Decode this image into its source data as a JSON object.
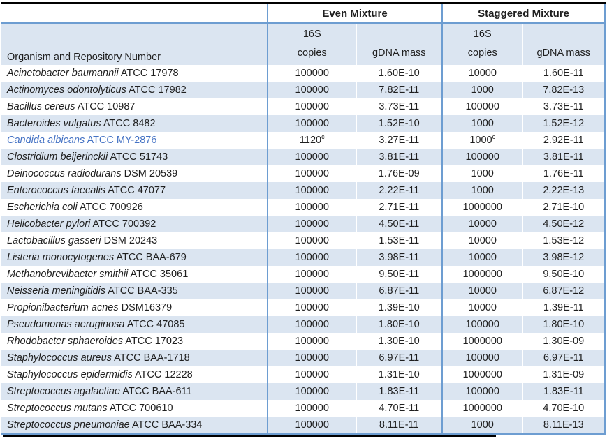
{
  "colors": {
    "stripe_background": "#dbe5f1",
    "blue_border": "#6d9dd1",
    "black_rule": "#000000",
    "highlight_text": "#4472c4",
    "body_text": "#1f1f1f"
  },
  "table": {
    "group_headers": [
      {
        "label": "Even Mixture"
      },
      {
        "label": "Staggered Mixture"
      }
    ],
    "organism_header": "Organism and Repository Number",
    "subheaders": {
      "copies_top": "16S",
      "copies_bottom": "copies",
      "mass": "gDNA mass"
    },
    "rows": [
      {
        "organism_italic": "Acinetobacter baumannii",
        "organism_plain": "ATCC 17978",
        "even_copies": "100000",
        "even_mass": "1.60E-10",
        "stag_copies": "10000",
        "stag_mass": "1.60E-11"
      },
      {
        "organism_italic": "Actinomyces odontolyticus",
        "organism_plain": "ATCC 17982",
        "even_copies": "100000",
        "even_mass": "7.82E-11",
        "stag_copies": "1000",
        "stag_mass": "7.82E-13"
      },
      {
        "organism_italic": "Bacillus cereus",
        "organism_plain": "ATCC 10987",
        "even_copies": "100000",
        "even_mass": "3.73E-11",
        "stag_copies": "100000",
        "stag_mass": "3.73E-11"
      },
      {
        "organism_italic": "Bacteroides vulgatus",
        "organism_plain": "ATCC 8482",
        "even_copies": "100000",
        "even_mass": "1.52E-10",
        "stag_copies": "1000",
        "stag_mass": "1.52E-12"
      },
      {
        "organism_italic": "Candida albicans",
        "organism_plain": "ATCC MY-2876",
        "even_copies": "1120",
        "even_copies_sup": "c",
        "even_mass": "3.27E-11",
        "stag_copies": "1000",
        "stag_copies_sup": "c",
        "stag_mass": "2.92E-11",
        "highlighted": true
      },
      {
        "organism_italic": "Clostridium beijerinckii",
        "organism_plain": "ATCC 51743",
        "even_copies": "100000",
        "even_mass": "3.81E-11",
        "stag_copies": "100000",
        "stag_mass": "3.81E-11"
      },
      {
        "organism_italic": "Deinococcus radiodurans",
        "organism_plain": "DSM 20539",
        "even_copies": "100000",
        "even_mass": "1.76E-09",
        "stag_copies": "1000",
        "stag_mass": "1.76E-11"
      },
      {
        "organism_italic": "Enterococcus faecalis",
        "organism_plain": "ATCC 47077",
        "even_copies": "100000",
        "even_mass": "2.22E-11",
        "stag_copies": "1000",
        "stag_mass": "2.22E-13"
      },
      {
        "organism_italic": "Escherichia coli",
        "organism_plain": "ATCC 700926",
        "even_copies": "100000",
        "even_mass": "2.71E-11",
        "stag_copies": "1000000",
        "stag_mass": "2.71E-10"
      },
      {
        "organism_italic": "Helicobacter pylori",
        "organism_plain": "ATCC 700392",
        "even_copies": "100000",
        "even_mass": "4.50E-11",
        "stag_copies": "10000",
        "stag_mass": "4.50E-12"
      },
      {
        "organism_italic": "Lactobacillus gasseri",
        "organism_plain": "DSM 20243",
        "even_copies": "100000",
        "even_mass": "1.53E-11",
        "stag_copies": "10000",
        "stag_mass": "1.53E-12"
      },
      {
        "organism_italic": "Listeria monocytogenes",
        "organism_plain": "ATCC BAA-679",
        "even_copies": "100000",
        "even_mass": "3.98E-11",
        "stag_copies": "10000",
        "stag_mass": "3.98E-12"
      },
      {
        "organism_italic": "Methanobrevibacter smithii",
        "organism_plain": "ATCC 35061",
        "even_copies": "100000",
        "even_mass": "9.50E-11",
        "stag_copies": "1000000",
        "stag_mass": "9.50E-10"
      },
      {
        "organism_italic": "Neisseria meningitidis",
        "organism_plain": "ATCC BAA-335",
        "even_copies": "100000",
        "even_mass": "6.87E-11",
        "stag_copies": "10000",
        "stag_mass": "6.87E-12"
      },
      {
        "organism_italic": "Propionibacterium acnes",
        "organism_plain": "DSM16379",
        "even_copies": "100000",
        "even_mass": "1.39E-10",
        "stag_copies": "10000",
        "stag_mass": "1.39E-11"
      },
      {
        "organism_italic": "Pseudomonas aeruginosa",
        "organism_plain": "ATCC 47085",
        "even_copies": "100000",
        "even_mass": "1.80E-10",
        "stag_copies": "100000",
        "stag_mass": "1.80E-10"
      },
      {
        "organism_italic": "Rhodobacter sphaeroides",
        "organism_plain": "ATCC 17023",
        "even_copies": "100000",
        "even_mass": "1.30E-10",
        "stag_copies": "1000000",
        "stag_mass": "1.30E-09"
      },
      {
        "organism_italic": "Staphylococcus aureus",
        "organism_plain": "ATCC BAA-1718",
        "even_copies": "100000",
        "even_mass": "6.97E-11",
        "stag_copies": "100000",
        "stag_mass": "6.97E-11"
      },
      {
        "organism_italic": "Staphylococcus epidermidis",
        "organism_plain": "ATCC 12228",
        "even_copies": "100000",
        "even_mass": "1.31E-10",
        "stag_copies": "1000000",
        "stag_mass": "1.31E-09"
      },
      {
        "organism_italic": "Streptococcus agalactiae",
        "organism_plain": "ATCC BAA-611",
        "even_copies": "100000",
        "even_mass": "1.83E-11",
        "stag_copies": "100000",
        "stag_mass": "1.83E-11"
      },
      {
        "organism_italic": "Streptococcus mutans",
        "organism_plain": "ATCC 700610",
        "even_copies": "100000",
        "even_mass": "4.70E-11",
        "stag_copies": "1000000",
        "stag_mass": "4.70E-10"
      },
      {
        "organism_italic": "Streptococcus pneumoniae",
        "organism_plain": "ATCC BAA-334",
        "even_copies": "100000",
        "even_mass": "8.11E-11",
        "stag_copies": "1000",
        "stag_mass": "8.11E-13"
      }
    ]
  }
}
